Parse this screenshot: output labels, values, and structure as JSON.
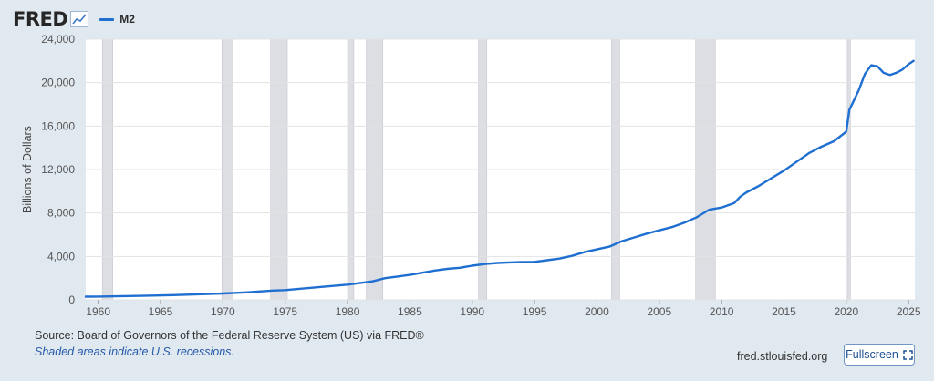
{
  "header": {
    "logo": "FRED",
    "legend_label": "M2"
  },
  "colors": {
    "series": "#1f6fd1",
    "recession": "#dcdee3",
    "grid": "#e3e3e3"
  },
  "icons": [
    "chart-trend-icon",
    "fullscreen-icon"
  ],
  "footer": {
    "source": "Source: Board of Governors of the Federal Reserve System (US) via FRED®",
    "note": "Shaded areas indicate U.S. recessions.",
    "site": "fred.stlouisfed.org",
    "fullscreen_label": "Fullscreen"
  },
  "chart_data": {
    "type": "line",
    "title": "",
    "xlabel": "",
    "ylabel": "Billions of Dollars",
    "xlim": [
      1959,
      2025.5
    ],
    "ylim": [
      0,
      24000
    ],
    "yticks": [
      0,
      4000,
      8000,
      12000,
      16000,
      20000,
      24000
    ],
    "ytick_labels": [
      "0",
      "4,000",
      "8,000",
      "12,000",
      "16,000",
      "20,000",
      "24,000"
    ],
    "xticks": [
      1960,
      1965,
      1970,
      1975,
      1980,
      1985,
      1990,
      1995,
      2000,
      2005,
      2010,
      2015,
      2020,
      2025
    ],
    "grid": "horizontal",
    "legend": "top-left",
    "recessions": [
      [
        1960.33,
        1961.17
      ],
      [
        1969.92,
        1970.83
      ],
      [
        1973.83,
        1975.17
      ],
      [
        1980.0,
        1980.5
      ],
      [
        1981.5,
        1982.83
      ],
      [
        1990.5,
        1991.17
      ],
      [
        2001.17,
        2001.83
      ],
      [
        2007.92,
        2009.5
      ],
      [
        2020.08,
        2020.33
      ]
    ],
    "series": [
      {
        "name": "M2",
        "points": [
          [
            1959.0,
            290
          ],
          [
            1960.0,
            300
          ],
          [
            1962.0,
            340
          ],
          [
            1964.0,
            390
          ],
          [
            1966.0,
            440
          ],
          [
            1968.0,
            510
          ],
          [
            1970.0,
            590
          ],
          [
            1972.0,
            700
          ],
          [
            1974.0,
            860
          ],
          [
            1975.0,
            900
          ],
          [
            1976.0,
            1000
          ],
          [
            1978.0,
            1200
          ],
          [
            1980.0,
            1400
          ],
          [
            1982.0,
            1700
          ],
          [
            1983.0,
            2000
          ],
          [
            1984.0,
            2150
          ],
          [
            1985.0,
            2300
          ],
          [
            1986.0,
            2500
          ],
          [
            1987.0,
            2700
          ],
          [
            1988.0,
            2850
          ],
          [
            1989.0,
            2950
          ],
          [
            1990.0,
            3150
          ],
          [
            1991.0,
            3300
          ],
          [
            1992.0,
            3400
          ],
          [
            1993.0,
            3450
          ],
          [
            1994.0,
            3480
          ],
          [
            1995.0,
            3500
          ],
          [
            1996.0,
            3650
          ],
          [
            1997.0,
            3800
          ],
          [
            1998.0,
            4050
          ],
          [
            1999.0,
            4400
          ],
          [
            2000.0,
            4650
          ],
          [
            2001.0,
            4900
          ],
          [
            2002.0,
            5400
          ],
          [
            2003.0,
            5750
          ],
          [
            2004.0,
            6100
          ],
          [
            2005.0,
            6400
          ],
          [
            2006.0,
            6700
          ],
          [
            2007.0,
            7100
          ],
          [
            2008.0,
            7600
          ],
          [
            2009.0,
            8300
          ],
          [
            2010.0,
            8500
          ],
          [
            2011.0,
            8900
          ],
          [
            2011.5,
            9500
          ],
          [
            2012.0,
            9900
          ],
          [
            2013.0,
            10500
          ],
          [
            2014.0,
            11200
          ],
          [
            2015.0,
            11900
          ],
          [
            2016.0,
            12700
          ],
          [
            2017.0,
            13500
          ],
          [
            2018.0,
            14100
          ],
          [
            2019.0,
            14600
          ],
          [
            2019.9,
            15400
          ],
          [
            2020.0,
            15500
          ],
          [
            2020.25,
            17500
          ],
          [
            2020.5,
            18100
          ],
          [
            2021.0,
            19300
          ],
          [
            2021.5,
            20800
          ],
          [
            2022.0,
            21600
          ],
          [
            2022.5,
            21500
          ],
          [
            2023.0,
            20900
          ],
          [
            2023.5,
            20700
          ],
          [
            2024.0,
            20900
          ],
          [
            2024.5,
            21200
          ],
          [
            2025.0,
            21700
          ],
          [
            2025.4,
            22000
          ]
        ]
      }
    ]
  }
}
